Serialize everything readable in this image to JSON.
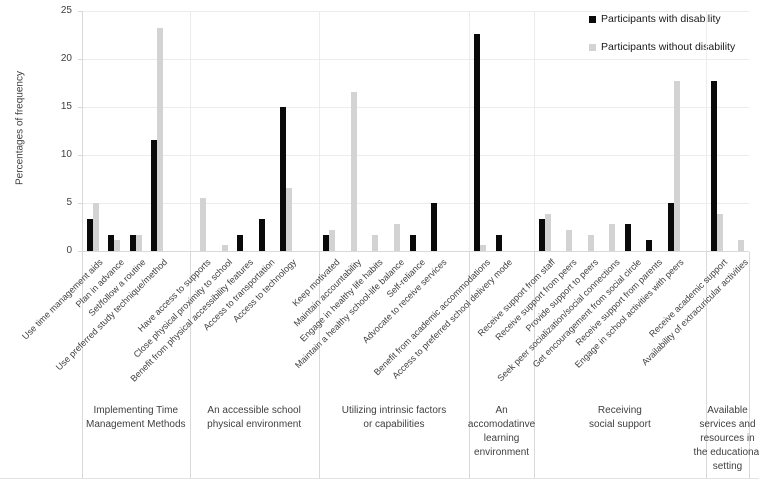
{
  "chart_data": {
    "type": "bar",
    "title": "",
    "ylabel": "Percentages of frequency",
    "ylim": [
      0,
      25
    ],
    "yticks": [
      0,
      5,
      10,
      15,
      20,
      25
    ],
    "grid": true,
    "legend_position": "top-right",
    "series": [
      {
        "name": "Participants with disability",
        "color": "#0a0a0a"
      },
      {
        "name": "Participants without disability",
        "color": "#d3d3d3"
      }
    ],
    "groups": [
      {
        "label": "Implementing Time Management Methods",
        "label_lines": "Implementing Time\nManagement Methods",
        "categories": [
          {
            "label": "Use time management aids",
            "with": 3.3,
            "without": 5.0
          },
          {
            "label": "Plan in advance",
            "with": 1.7,
            "without": 1.1
          },
          {
            "label": "Set/follow a routine",
            "with": 1.7,
            "without": 1.7
          },
          {
            "label": "Use preferred study technique/method",
            "with": 11.6,
            "without": 23.2
          }
        ]
      },
      {
        "label": "An accessible school physical environment",
        "label_lines": "An accessible school\nphysical environment",
        "categories": [
          {
            "label": "Have access to supports",
            "with": 0,
            "without": 5.5
          },
          {
            "label": "Close physical proximity to school",
            "with": 0,
            "without": 0.6
          },
          {
            "label": "Benefit from physical accessibility features",
            "with": 1.7,
            "without": 0
          },
          {
            "label": "Access to transportation",
            "with": 3.3,
            "without": 0
          },
          {
            "label": "Access to technology",
            "with": 15.0,
            "without": 6.6
          }
        ]
      },
      {
        "label": "Utilizing intrinsic factors or capabilities",
        "label_lines": "Utilizing intrinsic factors\nor capabilities",
        "categories": [
          {
            "label": "Keep motivated",
            "with": 1.7,
            "without": 2.2
          },
          {
            "label": "Maintain accountability",
            "with": 0,
            "without": 16.6
          },
          {
            "label": "Engage in healthy life habits",
            "with": 0,
            "without": 1.7
          },
          {
            "label": "Maintain a healthy school-life balance",
            "with": 0,
            "without": 2.8
          },
          {
            "label": "Self-reliance",
            "with": 1.7,
            "without": 0
          },
          {
            "label": "Advocate to receive services",
            "with": 5.0,
            "without": 0
          }
        ]
      },
      {
        "label": "An accomodatinve learning environment",
        "label_lines": "An\naccomodatinve\nlearning\nenvironment",
        "categories": [
          {
            "label": "Benefit from academic accommodations",
            "with": 22.6,
            "without": 0.6
          },
          {
            "label": "Access to preferred school delivery mode",
            "with": 1.7,
            "without": 0
          }
        ]
      },
      {
        "label": "Receiving social support",
        "label_lines": "Receiving\nsocial support",
        "categories": [
          {
            "label": "Receive support from staff",
            "with": 3.3,
            "without": 3.9
          },
          {
            "label": "Receive support from peers",
            "with": 0,
            "without": 2.2
          },
          {
            "label": "Provide support to peers",
            "with": 0,
            "without": 1.7
          },
          {
            "label": "Seek peer socialization/social connections",
            "with": 0,
            "without": 2.8
          },
          {
            "label": "Get encouragement from social circle",
            "with": 2.8,
            "without": 0
          },
          {
            "label": "Receive support from parents",
            "with": 1.1,
            "without": 0
          },
          {
            "label": "Engage in school activities with peers",
            "with": 5.0,
            "without": 17.7
          }
        ]
      },
      {
        "label": "Available services and resources in the educational setting",
        "label_lines": "Available\nservices and\nresources in\nthe educational\nsetting",
        "categories": [
          {
            "label": "Receive academic support",
            "with": 17.7,
            "without": 3.9
          },
          {
            "label": "Availability of extracuricular activities",
            "with": 0,
            "without": 1.1
          }
        ]
      }
    ]
  },
  "legend": {
    "with_label": "Participants with disability",
    "without_label": "Participants without disability"
  },
  "axis": {
    "y_title": "Percentages of frequency"
  },
  "colors": {
    "with": "#0a0a0a",
    "without": "#d3d3d3",
    "gridline": "#ececec",
    "axis": "#d9d9d9"
  }
}
